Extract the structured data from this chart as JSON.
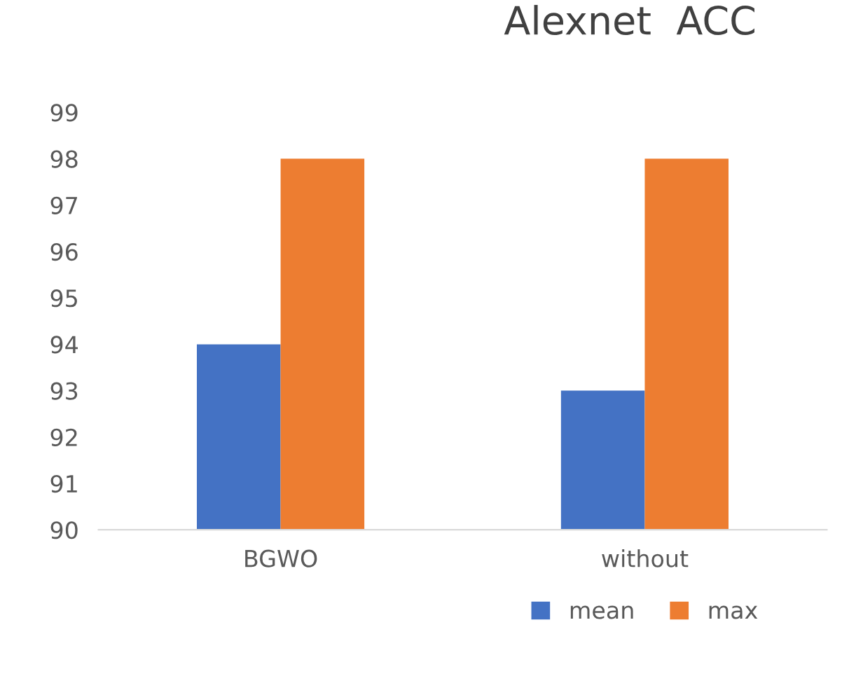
{
  "chart_data": {
    "type": "bar",
    "title": "Alexnet  ACC",
    "categories": [
      "BGWO",
      "without"
    ],
    "series": [
      {
        "name": "mean",
        "color": "#4472c4",
        "values": [
          94,
          93
        ]
      },
      {
        "name": "max",
        "color": "#ed7d31",
        "values": [
          98,
          98
        ]
      }
    ],
    "ylim": [
      90,
      99
    ],
    "yticks": [
      90,
      91,
      92,
      93,
      94,
      95,
      96,
      97,
      98,
      99
    ],
    "grid": false,
    "legend": "bottom"
  }
}
